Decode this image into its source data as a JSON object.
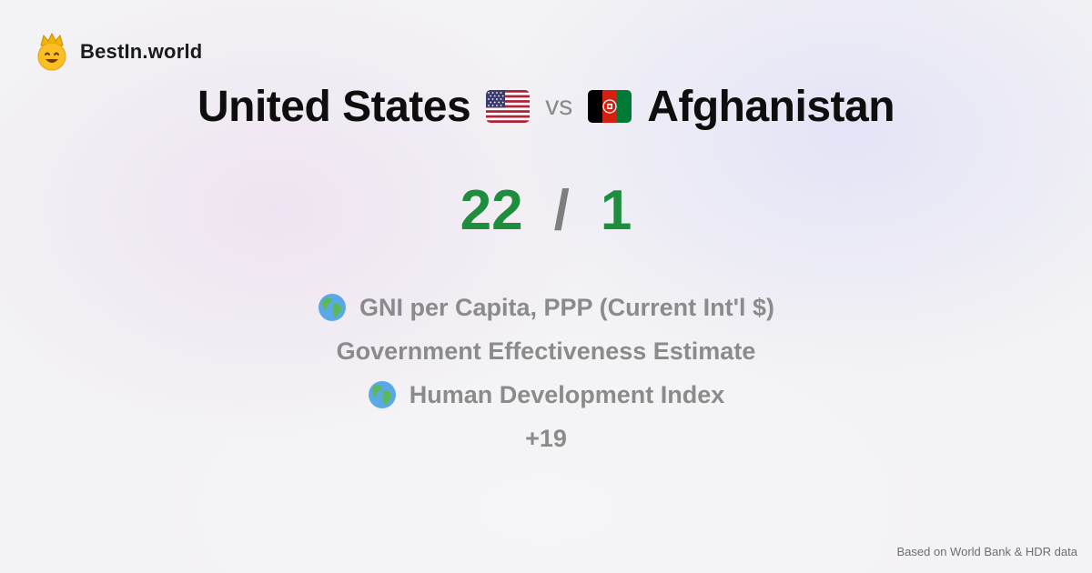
{
  "brand": {
    "name": "BestIn.world",
    "icon": "crowned-smiley-icon"
  },
  "comparison": {
    "country_a": {
      "name": "United States",
      "flag": "us-flag-icon"
    },
    "separator": "vs",
    "country_b": {
      "name": "Afghanistan",
      "flag": "afghanistan-flag-icon"
    }
  },
  "score": {
    "a": "22",
    "separator": "/",
    "b": "1",
    "color": "#1e8e3e"
  },
  "metrics": [
    {
      "label": "GNI per Capita, PPP (Current Int'l $)",
      "icon": "globe-icon"
    },
    {
      "label": "Government Effectiveness Estimate",
      "icon": ""
    },
    {
      "label": "Human Development Index",
      "icon": "globe-icon"
    }
  ],
  "more_count": "+19",
  "footer": "Based on World Bank & HDR data"
}
